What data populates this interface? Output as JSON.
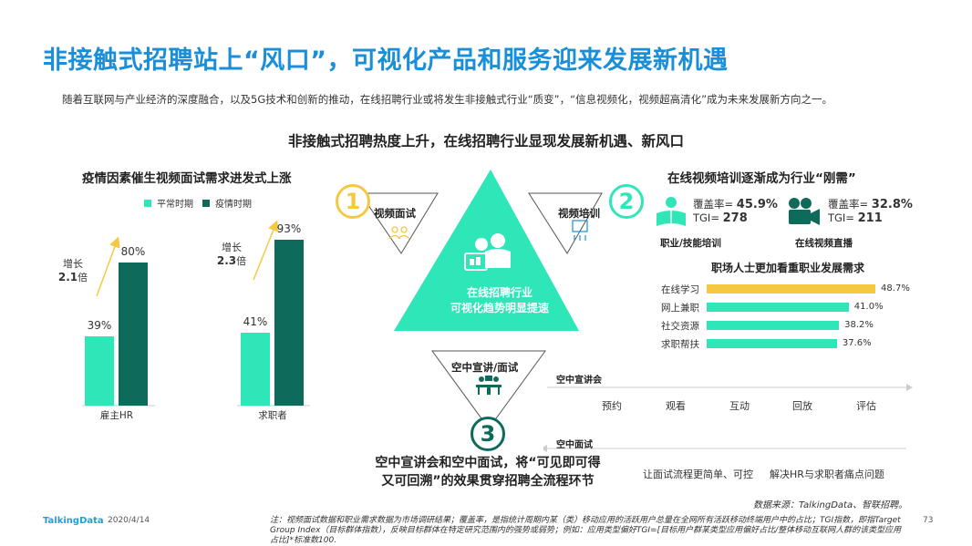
{
  "title": "非接触式招聘站上“风口”，可视化产品和服务迎来发展新机遇",
  "subtitle": "随着互联网与产业经济的深度融合，以及5G技术和创新的推动，在线招聘行业或将发生非接触式行业“质变”，“信息视频化，视频超高清化”成为未来发展新方向之一。",
  "section_title": "非接触式招聘热度上升，在线招聘行业显现发展新机遇、新风口",
  "left": {
    "title": "疫情因素催生视频面试需求进发式上涨",
    "legend": [
      "平常时期",
      "疫情时期"
    ],
    "colors": {
      "normal": "#2ee6b8",
      "epidemic": "#0e6b5c",
      "arrow": "#f5c842"
    },
    "groups": [
      {
        "label": "雇主HR",
        "normal_label": "39%",
        "epidemic_label": "80%",
        "growth_prefix": "增长",
        "growth_value": "2.1",
        "growth_suffix": "倍"
      },
      {
        "label": "求职者",
        "normal_label": "41%",
        "epidemic_label": "93%",
        "growth_prefix": "增长",
        "growth_value": "2.3",
        "growth_suffix": "倍"
      }
    ],
    "chart_data": {
      "type": "bar",
      "categories": [
        "雇主HR",
        "求职者"
      ],
      "series": [
        {
          "name": "平常时期",
          "values": [
            39,
            41
          ]
        },
        {
          "name": "疫情时期",
          "values": [
            80,
            93
          ]
        }
      ]
    }
  },
  "center": {
    "main_text_1": "在线招聘行业",
    "main_text_2": "可视化趋势明显提速",
    "item1": {
      "num": "1",
      "label": "视频面试",
      "icon": "people-icon"
    },
    "item2": {
      "num": "2",
      "label": "视频培训",
      "icon": "training-icon"
    },
    "item3": {
      "num": "3",
      "label": "空中宣讲/面试",
      "icon": "meeting-icon"
    },
    "bottom_line1": "空中宣讲会和空中面试，将“可见即可得",
    "bottom_line2": "又可回溯”的效果贯穿招聘全流程环节",
    "colors": {
      "triangle": "#2ee6b8",
      "item1": "#f5c842",
      "item2": "#2ee6b8",
      "item3": "#0e6b5c"
    }
  },
  "right": {
    "title": "在线视频培训逐渐成为行业“刚需”",
    "stats": [
      {
        "coverage_label": "覆盖率=",
        "coverage": "45.9%",
        "tgi_label": "TGI=",
        "tgi": "278",
        "caption": "职业/技能培训",
        "icon": "reader-icon"
      },
      {
        "coverage_label": "覆盖率=",
        "coverage": "32.8%",
        "tgi_label": "TGI=",
        "tgi": "211",
        "caption": "在线视频直播",
        "icon": "video-camera-icon"
      }
    ],
    "demand_title": "职场人士更加看重职业发展需求",
    "demand_chart": {
      "type": "bar",
      "categories": [
        "在线学习",
        "网上兼职",
        "社交资源",
        "求职帮扶"
      ],
      "values": [
        48.7,
        41.0,
        38.2,
        37.6
      ],
      "value_labels": [
        "48.7%",
        "41.0%",
        "38.2%",
        "37.6%"
      ],
      "colors": [
        "#f5c842",
        "#2ee6b8",
        "#2ee6b8",
        "#2ee6b8"
      ]
    }
  },
  "flow": {
    "row1_title": "空中宣讲会",
    "row1_steps": [
      "预约",
      "观看",
      "互动",
      "回放",
      "评估"
    ],
    "row2_title": "空中面试",
    "row2_steps": [
      "让面试流程更简单、可控",
      "解决HR与求职者痛点问题"
    ]
  },
  "footer": {
    "source": "数据来源：TalkingData、智联招聘。",
    "note": "注：视频面试数据和职业需求数据为市场调研结果；覆盖率，是指统计周期内某（类）移动应用的活跃用户总量在全网所有活跃移动终端用户中的占比；TGI指数，即指Target Group Index（目标群体指数），反映目标群体在特定研究范围内的强势或弱势；例如：应用类型偏好TGI=[目标用户群某类型应用偏好占比/整体移动互联网人群的该类型应用占比]*标准数100.",
    "logo": "TalkingData",
    "date": "2020/4/14",
    "page": "73"
  }
}
